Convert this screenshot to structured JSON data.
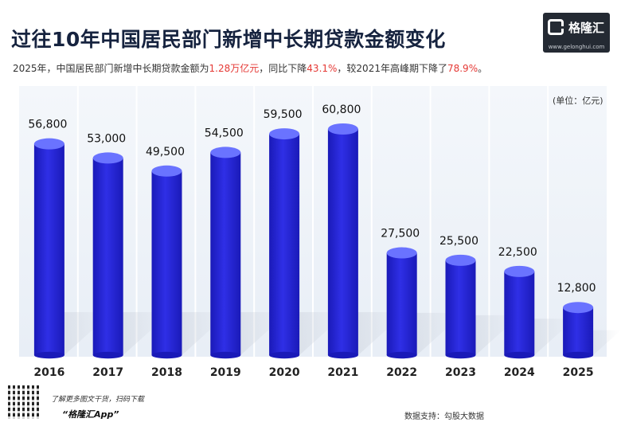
{
  "header": {
    "title": "过往10年中国居民部门新增中长期贷款金额变化",
    "subtitle_parts": [
      {
        "text": "2025年，中国居民部门新增中长期贷款金额为",
        "highlight": false
      },
      {
        "text": "1.28万亿元",
        "highlight": true
      },
      {
        "text": "，同比下降",
        "highlight": false
      },
      {
        "text": "43.1%",
        "highlight": true
      },
      {
        "text": "，较2021年高峰期下降了",
        "highlight": false
      },
      {
        "text": "78.9%",
        "highlight": true
      },
      {
        "text": "。",
        "highlight": false
      }
    ],
    "unit": "(单位：亿元)"
  },
  "logo": {
    "name": "格隆汇",
    "url": "www.gelonghui.com"
  },
  "footer": {
    "qr_caption": "了解更多图文干货，扫码下载",
    "app_name": "“格隆汇App”",
    "source": "数据支持：勾股大数据"
  },
  "chart_data": {
    "type": "bar",
    "title": "过往10年中国居民部门新增中长期贷款金额变化",
    "ylabel": "(单位：亿元)",
    "categories": [
      "2016",
      "2017",
      "2018",
      "2019",
      "2020",
      "2021",
      "2022",
      "2023",
      "2024",
      "2025"
    ],
    "values": [
      56800,
      53000,
      49500,
      54500,
      59500,
      60800,
      27500,
      25500,
      22500,
      12800
    ],
    "value_labels": [
      "56,800",
      "53,000",
      "49,500",
      "54,500",
      "59,500",
      "60,800",
      "27,500",
      "25,500",
      "22,500",
      "12,800"
    ],
    "ylim": [
      0,
      65000
    ],
    "grid": true,
    "colors": {
      "bar": "#2f2fe6",
      "bar_top": "#6a73ff",
      "bar_dark": "#1a1ab8",
      "panel": "#e8eef6",
      "grid": "#ffffff"
    }
  }
}
